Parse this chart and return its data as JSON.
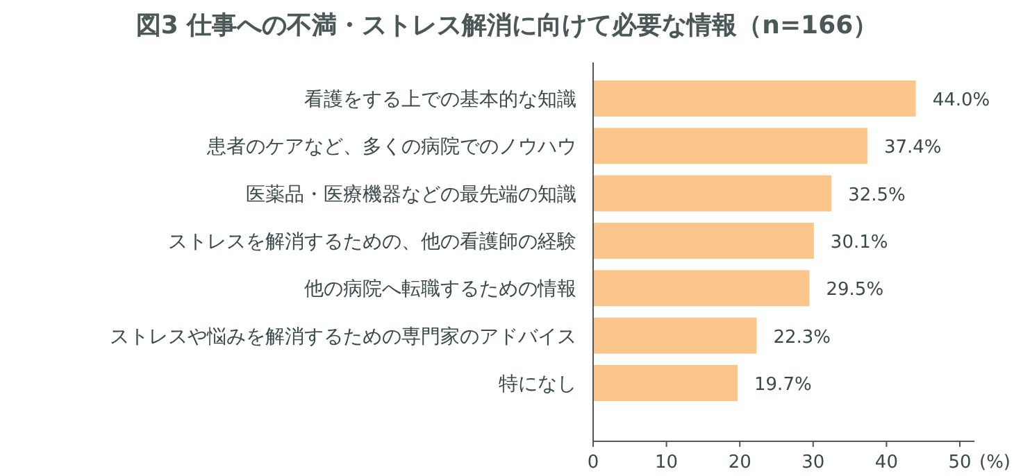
{
  "chart_data": {
    "type": "bar",
    "orientation": "horizontal",
    "title": "図3  仕事への不満・ストレス解消に向けて必要な情報（n=166）",
    "categories": [
      "看護をする上での基本的な知識",
      "患者のケアなど、多くの病院でのノウハウ",
      "医薬品・医療機器などの最先端の知識",
      "ストレスを解消するための、他の看護師の経験",
      "他の病院へ転職するための情報",
      "ストレスや悩みを解消するための専門家のアドバイス",
      "特になし"
    ],
    "values": [
      44.0,
      37.4,
      32.5,
      30.1,
      29.5,
      22.3,
      19.7
    ],
    "value_labels": [
      "44.0%",
      "37.4%",
      "32.5%",
      "30.1%",
      "29.5%",
      "22.3%",
      "19.7%"
    ],
    "color": "#fcc58c",
    "xlim": [
      0,
      52
    ],
    "xticks": [
      0,
      10,
      20,
      30,
      40,
      50
    ],
    "xlabel": "(%)",
    "grid": false
  }
}
